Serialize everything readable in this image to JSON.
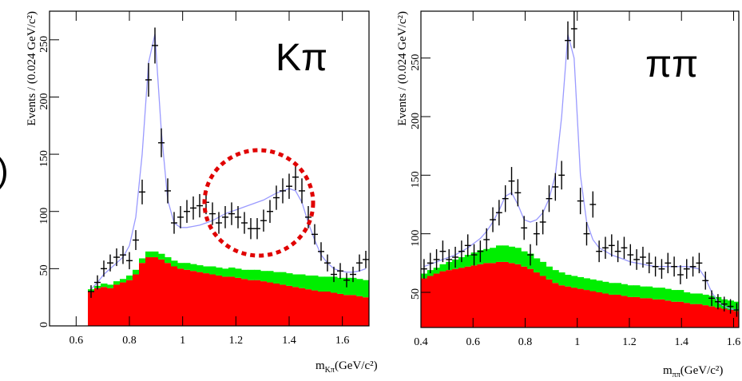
{
  "fragment": ")",
  "chart_data": [
    {
      "type": "hep",
      "label": "Kπ",
      "ylabel": "Events / (0.024 GeV/c²)",
      "xlabel": {
        "symbol": "m",
        "subscript": "Kπ",
        "unit": "(GeV/c²)"
      },
      "xlim": [
        0.5,
        1.7
      ],
      "ylim": [
        0,
        275
      ],
      "xticks": [
        0.6,
        0.8,
        1,
        1.2,
        1.4,
        1.6
      ],
      "yticks": [
        0,
        50,
        100,
        150,
        200,
        250
      ],
      "x": [
        0.656,
        0.68,
        0.704,
        0.728,
        0.752,
        0.776,
        0.8,
        0.824,
        0.848,
        0.872,
        0.896,
        0.92,
        0.944,
        0.968,
        0.992,
        1.016,
        1.04,
        1.064,
        1.088,
        1.112,
        1.136,
        1.16,
        1.184,
        1.208,
        1.232,
        1.256,
        1.28,
        1.304,
        1.328,
        1.352,
        1.376,
        1.4,
        1.424,
        1.448,
        1.472,
        1.496,
        1.52,
        1.544,
        1.568,
        1.592,
        1.616,
        1.64,
        1.664,
        1.688
      ],
      "stack": [
        {
          "color": "#ff0000",
          "values": [
            30,
            33,
            34,
            33,
            36,
            38,
            40,
            45,
            55,
            60,
            60,
            58,
            55,
            52,
            50,
            49,
            48,
            47,
            46,
            45,
            44,
            43,
            43,
            42,
            41,
            40,
            40,
            39,
            38,
            37,
            36,
            35,
            34,
            33,
            32,
            31,
            30,
            30,
            29,
            28,
            27,
            27,
            26,
            25
          ]
        },
        {
          "color": "#00ee00",
          "values": [
            2,
            2,
            3,
            3,
            3,
            3,
            4,
            4,
            4,
            5,
            5,
            5,
            5,
            5,
            5,
            6,
            6,
            6,
            6,
            7,
            7,
            7,
            8,
            8,
            8,
            9,
            9,
            9,
            10,
            10,
            11,
            11,
            11,
            12,
            12,
            13,
            13,
            13,
            14,
            14,
            15,
            15,
            15,
            15
          ]
        }
      ],
      "fit": {
        "color": "#9a9aff",
        "values": [
          32,
          38,
          45,
          50,
          55,
          60,
          70,
          95,
          150,
          230,
          255,
          170,
          110,
          90,
          86,
          86,
          87,
          88,
          90,
          92,
          95,
          98,
          100,
          102,
          104,
          106,
          108,
          110,
          113,
          116,
          118,
          120,
          118,
          108,
          90,
          75,
          62,
          55,
          50,
          48,
          47,
          47,
          48,
          50
        ]
      },
      "data": {
        "color": "#000000",
        "values": [
          30,
          38,
          50,
          55,
          60,
          62,
          57,
          75,
          117,
          215,
          245,
          160,
          118,
          90,
          95,
          100,
          103,
          105,
          108,
          98,
          90,
          95,
          98,
          95,
          90,
          85,
          85,
          92,
          100,
          112,
          118,
          122,
          130,
          118,
          95,
          80,
          65,
          55,
          45,
          48,
          40,
          45,
          55,
          58
        ],
        "errors": [
          5.5,
          6.2,
          7.1,
          7.4,
          7.7,
          7.9,
          7.5,
          8.7,
          10.8,
          14.7,
          15.7,
          12.6,
          10.9,
          9.5,
          9.7,
          10,
          10.1,
          10.2,
          10.4,
          9.9,
          9.5,
          9.7,
          9.9,
          9.7,
          9.5,
          9.2,
          9.2,
          9.6,
          10,
          10.6,
          10.9,
          11,
          11.4,
          10.9,
          9.7,
          8.9,
          8.1,
          7.4,
          6.7,
          6.9,
          6.3,
          6.7,
          7.4,
          7.6
        ]
      }
    },
    {
      "type": "hep",
      "label": "ππ",
      "ylabel": "Events / (0.024 GeV/c²)",
      "xlabel": {
        "symbol": "m",
        "subscript": "ππ",
        "unit": "(GeV/c²)"
      },
      "xlim": [
        0.4,
        1.62
      ],
      "ylim": [
        20,
        290
      ],
      "xticks": [
        0.4,
        0.6,
        0.8,
        1,
        1.2,
        1.4,
        1.6
      ],
      "yticks": [
        50,
        100,
        150,
        200,
        250
      ],
      "x": [
        0.412,
        0.436,
        0.46,
        0.484,
        0.508,
        0.532,
        0.556,
        0.58,
        0.604,
        0.628,
        0.652,
        0.676,
        0.7,
        0.724,
        0.748,
        0.772,
        0.796,
        0.82,
        0.844,
        0.868,
        0.892,
        0.916,
        0.94,
        0.964,
        0.988,
        1.012,
        1.036,
        1.06,
        1.084,
        1.108,
        1.132,
        1.156,
        1.18,
        1.204,
        1.228,
        1.252,
        1.276,
        1.3,
        1.324,
        1.348,
        1.372,
        1.396,
        1.42,
        1.444,
        1.468,
        1.492,
        1.516,
        1.54,
        1.564,
        1.588,
        1.612
      ],
      "stack": [
        {
          "color": "#ff0000",
          "values": [
            62,
            64,
            66,
            68,
            69,
            70,
            71,
            72,
            73,
            74,
            75,
            75,
            76,
            76,
            75,
            74,
            72,
            70,
            67,
            64,
            61,
            58,
            56,
            55,
            54,
            53,
            52,
            51,
            50,
            49,
            48,
            48,
            47,
            46,
            46,
            45,
            45,
            44,
            44,
            43,
            42,
            42,
            41,
            40,
            40,
            39,
            38,
            37,
            36,
            35,
            34
          ]
        },
        {
          "color": "#00ee00",
          "values": [
            4,
            5,
            5,
            6,
            7,
            8,
            9,
            10,
            11,
            12,
            12,
            13,
            14,
            14,
            14,
            14,
            13,
            13,
            12,
            12,
            11,
            11,
            11,
            10,
            10,
            10,
            10,
            10,
            10,
            10,
            10,
            10,
            10,
            10,
            10,
            10,
            10,
            10,
            10,
            10,
            10,
            10,
            9,
            9,
            9,
            9,
            9,
            9,
            8,
            8,
            8
          ]
        }
      ],
      "fit": {
        "color": "#9a9aff",
        "values": [
          72,
          74,
          76,
          78,
          80,
          82,
          85,
          88,
          92,
          96,
          102,
          110,
          120,
          132,
          135,
          125,
          112,
          110,
          112,
          118,
          130,
          150,
          200,
          270,
          250,
          150,
          110,
          95,
          88,
          85,
          82,
          80,
          78,
          76,
          75,
          74,
          73,
          72,
          72,
          72,
          72,
          72,
          72,
          71,
          70,
          62,
          50,
          42,
          38,
          36,
          35
        ]
      },
      "data": {
        "color": "#000000",
        "values": [
          70,
          75,
          78,
          85,
          78,
          80,
          85,
          90,
          82,
          85,
          95,
          112,
          118,
          130,
          145,
          135,
          105,
          82,
          100,
          110,
          130,
          140,
          150,
          265,
          275,
          128,
          100,
          125,
          85,
          88,
          90,
          85,
          88,
          82,
          78,
          80,
          75,
          72,
          70,
          75,
          72,
          65,
          70,
          72,
          75,
          60,
          45,
          42,
          40,
          38,
          35
        ],
        "errors": [
          8.4,
          8.7,
          8.8,
          9.2,
          8.8,
          8.9,
          9.2,
          9.5,
          9.1,
          9.2,
          9.7,
          10.6,
          10.9,
          11.4,
          12,
          11.6,
          10.2,
          9.1,
          10,
          10.5,
          11.4,
          11.8,
          12.2,
          16.3,
          16.6,
          11.3,
          10,
          11.2,
          9.2,
          9.4,
          9.5,
          9.2,
          9.4,
          9.1,
          8.8,
          8.9,
          8.7,
          8.5,
          8.4,
          8.7,
          8.5,
          8.1,
          8.4,
          8.5,
          8.7,
          7.7,
          6.7,
          6.5,
          6.3,
          6.2,
          5.9
        ]
      }
    }
  ]
}
